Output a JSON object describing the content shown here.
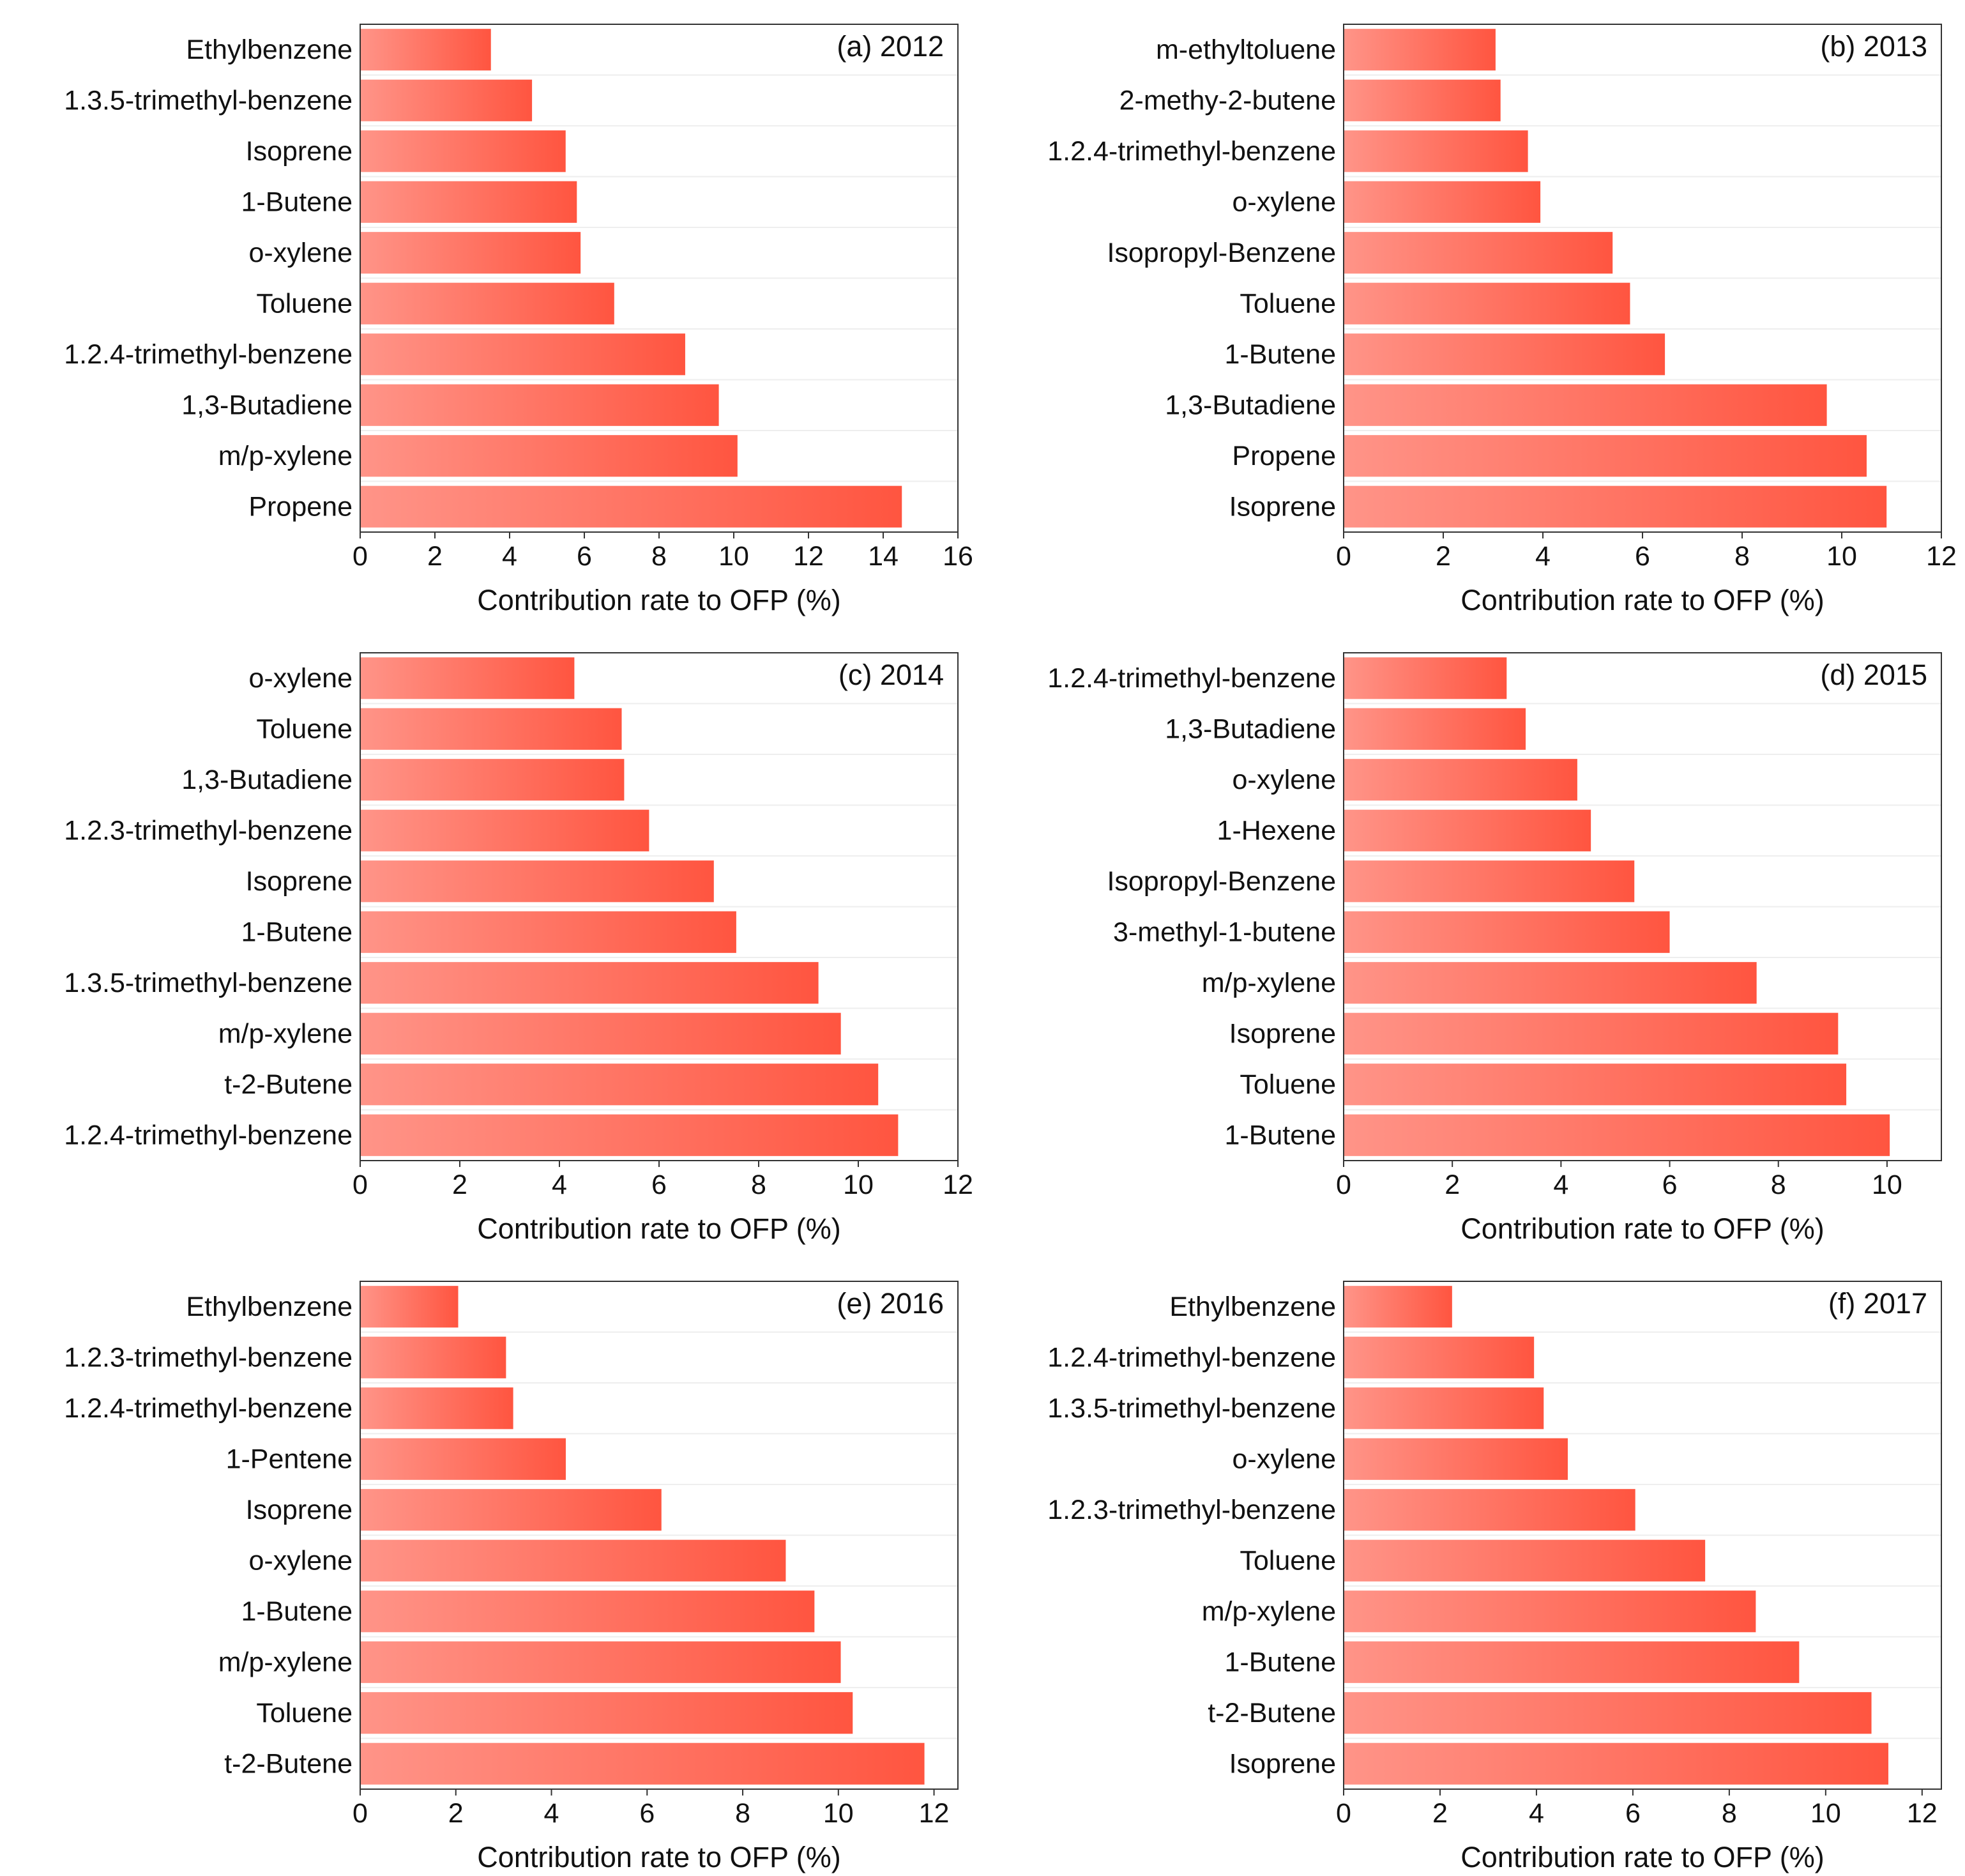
{
  "colors": {
    "bar_light": "#ff9488",
    "bar_dark": "#ff5540",
    "frame": "#333333",
    "gridline": "#eeeeee"
  },
  "chart_data": [
    {
      "type": "bar",
      "orientation": "horizontal",
      "panel_label": "(a) 2012",
      "categories": [
        "Ethylbenzene",
        "1.3.5-trimethyl-benzene",
        "Isoprene",
        "1-Butene",
        "o-xylene",
        "Toluene",
        "1.2.4-trimethyl-benzene",
        "1,3-Butadiene",
        "m/p-xylene",
        "Propene"
      ],
      "values": [
        3.5,
        4.6,
        5.5,
        5.8,
        5.9,
        6.8,
        8.7,
        9.6,
        10.1,
        14.5
      ],
      "xlabel": "Contribution rate to OFP (%)",
      "xlim": [
        0,
        16
      ],
      "xticks": [
        0,
        2,
        4,
        6,
        8,
        10,
        12,
        14,
        16
      ]
    },
    {
      "type": "bar",
      "orientation": "horizontal",
      "panel_label": "(b) 2013",
      "categories": [
        "m-ethyltoluene",
        "2-methy-2-butene",
        "1.2.4-trimethyl-benzene",
        "o-xylene",
        "Isopropyl-Benzene",
        "Toluene",
        "1-Butene",
        "1,3-Butadiene",
        "Propene",
        "Isoprene"
      ],
      "values": [
        3.05,
        3.15,
        3.7,
        3.95,
        5.4,
        5.75,
        6.45,
        9.7,
        10.5,
        10.9
      ],
      "xlabel": "Contribution rate to OFP (%)",
      "xlim": [
        0,
        12
      ],
      "xticks": [
        0,
        2,
        4,
        6,
        8,
        10,
        12
      ]
    },
    {
      "type": "bar",
      "orientation": "horizontal",
      "panel_label": "(c) 2014",
      "categories": [
        "o-xylene",
        "Toluene",
        "1,3-Butadiene",
        "1.2.3-trimethyl-benzene",
        "Isoprene",
        "1-Butene",
        "1.3.5-trimethyl-benzene",
        "m/p-xylene",
        "t-2-Butene",
        "1.2.4-trimethyl-benzene"
      ],
      "values": [
        4.3,
        5.25,
        5.3,
        5.8,
        7.1,
        7.55,
        9.2,
        9.65,
        10.4,
        10.8
      ],
      "xlabel": "Contribution rate to OFP (%)",
      "xlim": [
        0,
        12
      ],
      "xticks": [
        0,
        2,
        4,
        6,
        8,
        10,
        12
      ]
    },
    {
      "type": "bar",
      "orientation": "horizontal",
      "panel_label": "(d) 2015",
      "categories": [
        "1.2.4-trimethyl-benzene",
        "1,3-Butadiene",
        "o-xylene",
        "1-Hexene",
        "Isopropyl-Benzene",
        "3-methyl-1-butene",
        "m/p-xylene",
        "Isoprene",
        "Toluene",
        "1-Butene"
      ],
      "values": [
        3.0,
        3.35,
        4.3,
        4.55,
        5.35,
        6.0,
        7.6,
        9.1,
        9.25,
        10.05
      ],
      "xlabel": "Contribution rate to OFP (%)",
      "xlim": [
        0,
        11
      ],
      "xticks": [
        0,
        2,
        4,
        6,
        8,
        10
      ]
    },
    {
      "type": "bar",
      "orientation": "horizontal",
      "panel_label": "(e) 2016",
      "categories": [
        "Ethylbenzene",
        "1.2.3-trimethyl-benzene",
        "1.2.4-trimethyl-benzene",
        "1-Pentene",
        "Isoprene",
        "o-xylene",
        "1-Butene",
        "m/p-xylene",
        "Toluene",
        "t-2-Butene"
      ],
      "values": [
        2.05,
        3.05,
        3.2,
        4.3,
        6.3,
        8.9,
        9.5,
        10.05,
        10.3,
        11.8
      ],
      "xlabel": "Contribution rate to OFP (%)",
      "xlim": [
        0,
        12.5
      ],
      "xticks": [
        0,
        2,
        4,
        6,
        8,
        10,
        12
      ]
    },
    {
      "type": "bar",
      "orientation": "horizontal",
      "panel_label": "(f) 2017",
      "categories": [
        "Ethylbenzene",
        "1.2.4-trimethyl-benzene",
        "1.3.5-trimethyl-benzene",
        "o-xylene",
        "1.2.3-trimethyl-benzene",
        "Toluene",
        "m/p-xylene",
        "1-Butene",
        "t-2-Butene",
        "Isoprene"
      ],
      "values": [
        2.25,
        3.95,
        4.15,
        4.65,
        6.05,
        7.5,
        8.55,
        9.45,
        10.95,
        11.3
      ],
      "xlabel": "Contribution rate to OFP (%)",
      "xlim": [
        0,
        12.4
      ],
      "xticks": [
        0,
        2,
        4,
        6,
        8,
        10,
        12
      ]
    }
  ]
}
